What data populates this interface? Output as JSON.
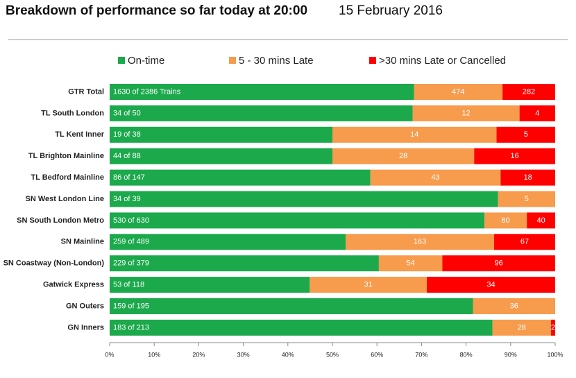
{
  "chart_data": {
    "type": "stacked_bar_100",
    "title": "Breakdown of performance so far today at 20:00",
    "subtitle": "15 February 2016",
    "categories": [
      "GTR Total",
      "TL South London",
      "TL Kent Inner",
      "TL Brighton Mainline",
      "TL Bedford Mainline",
      "SN West London Line",
      "SN South London Metro",
      "SN Mainline",
      "SN Coastway (Non-London)",
      "Gatwick Express",
      "GN Outers",
      "GN Inners"
    ],
    "series": [
      {
        "name": "On-time",
        "color": "#1ba94c",
        "values": [
          1630,
          34,
          19,
          44,
          86,
          34,
          530,
          259,
          229,
          53,
          159,
          183
        ],
        "value_labels": [
          "1630 of 2386 Trains",
          "34 of 50",
          "19 of 38",
          "44 of 88",
          "86 of 147",
          "34 of 39",
          "530 of 630",
          "259 of 489",
          "229 of 379",
          "53 of 118",
          "159 of 195",
          "183 of 213"
        ]
      },
      {
        "name": "5 - 30 mins Late",
        "color": "#f79b4d",
        "values": [
          474,
          12,
          14,
          28,
          43,
          5,
          60,
          163,
          54,
          31,
          36,
          28
        ]
      },
      {
        "name": ">30 mins Late or Cancelled",
        "color": "#ff0000",
        "values": [
          282,
          4,
          5,
          16,
          18,
          null,
          40,
          67,
          96,
          34,
          null,
          2
        ]
      }
    ],
    "xlim": [
      0,
      100
    ],
    "xticks": [
      {
        "value": 0,
        "label": "0%"
      },
      {
        "value": 10,
        "label": "10%"
      },
      {
        "value": 20,
        "label": "20%"
      },
      {
        "value": 30,
        "label": "30%"
      },
      {
        "value": 40,
        "label": "40%"
      },
      {
        "value": 50,
        "label": "50%"
      },
      {
        "value": 60,
        "label": "60%"
      },
      {
        "value": 70,
        "label": "70%"
      },
      {
        "value": 80,
        "label": "80%"
      },
      {
        "value": 90,
        "label": "90%"
      },
      {
        "value": 100,
        "label": "100%"
      }
    ],
    "legend": "top"
  }
}
